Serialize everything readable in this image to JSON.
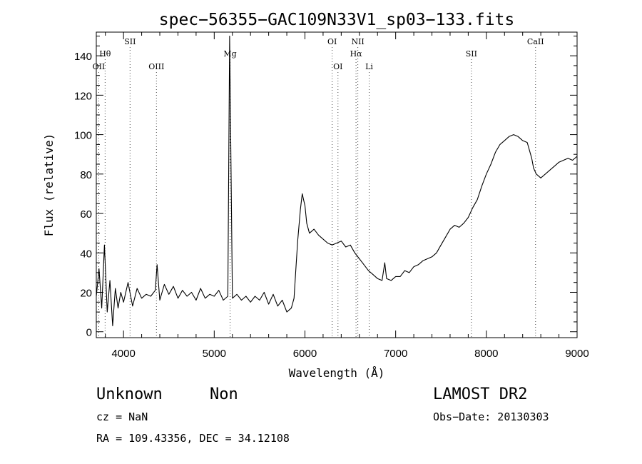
{
  "chart_data": {
    "type": "line",
    "title": "spec−56355−GAC109N33V1_sp03−133.fits",
    "xlabel": "Wavelength (Å)",
    "ylabel": "Flux (relative)",
    "xlim": [
      3700,
      9000
    ],
    "ylim": [
      -3,
      152
    ],
    "x_ticks": [
      4000,
      5000,
      6000,
      7000,
      8000,
      9000
    ],
    "y_ticks": [
      0,
      20,
      40,
      60,
      80,
      100,
      120,
      140
    ],
    "grid": false,
    "series": [
      {
        "color": "#000000",
        "x": [
          3700,
          3730,
          3760,
          3790,
          3820,
          3850,
          3880,
          3910,
          3940,
          3970,
          4000,
          4050,
          4100,
          4150,
          4200,
          4250,
          4300,
          4350,
          4370,
          4400,
          4450,
          4500,
          4550,
          4600,
          4650,
          4700,
          4750,
          4800,
          4850,
          4900,
          4950,
          5000,
          5050,
          5100,
          5150,
          5170,
          5200,
          5250,
          5300,
          5350,
          5400,
          5450,
          5500,
          5550,
          5600,
          5650,
          5700,
          5750,
          5800,
          5850,
          5880,
          5900,
          5920,
          5950,
          5970,
          5990,
          6000,
          6020,
          6050,
          6100,
          6150,
          6200,
          6250,
          6300,
          6350,
          6400,
          6450,
          6500,
          6550,
          6600,
          6650,
          6700,
          6750,
          6800,
          6850,
          6880,
          6900,
          6950,
          7000,
          7050,
          7100,
          7150,
          7200,
          7250,
          7300,
          7350,
          7400,
          7450,
          7500,
          7550,
          7600,
          7650,
          7700,
          7750,
          7800,
          7850,
          7900,
          7950,
          8000,
          8050,
          8100,
          8150,
          8200,
          8250,
          8300,
          8350,
          8400,
          8450,
          8500,
          8520,
          8550,
          8600,
          8650,
          8700,
          8750,
          8800,
          8850,
          8900,
          8950,
          9000
        ],
        "values": [
          18,
          32,
          12,
          44,
          10,
          26,
          3,
          22,
          12,
          20,
          15,
          25,
          13,
          22,
          17,
          19,
          18,
          21,
          34,
          16,
          24,
          19,
          23,
          17,
          21,
          18,
          20,
          16,
          22,
          17,
          19,
          18,
          21,
          16,
          18,
          150,
          17,
          19,
          16,
          18,
          15,
          18,
          16,
          20,
          14,
          19,
          13,
          16,
          10,
          12,
          17,
          32,
          46,
          62,
          70,
          66,
          64,
          55,
          50,
          52,
          49,
          47,
          45,
          44,
          45,
          46,
          43,
          44,
          40,
          37,
          34,
          31,
          29,
          27,
          26,
          35,
          27,
          26,
          28,
          28,
          31,
          30,
          33,
          34,
          36,
          37,
          38,
          40,
          44,
          48,
          52,
          54,
          53,
          55,
          58,
          63,
          67,
          74,
          80,
          85,
          91,
          95,
          97,
          99,
          100,
          99,
          97,
          96,
          88,
          83,
          80,
          78,
          80,
          82,
          84,
          86,
          87,
          88,
          87,
          89
        ]
      }
    ],
    "line_markers": [
      {
        "label": "Hθ",
        "wavelength": 3797,
        "row": 1
      },
      {
        "label": "OII",
        "wavelength": 3727,
        "row": 2
      },
      {
        "label": "SII",
        "wavelength": 4072,
        "row": 0
      },
      {
        "label": "OIII",
        "wavelength": 4363,
        "row": 2
      },
      {
        "label": "Mg",
        "wavelength": 5175,
        "row": 1
      },
      {
        "label": "OI",
        "wavelength": 6300,
        "row": 0
      },
      {
        "label": "OI",
        "wavelength": 6364,
        "row": 2
      },
      {
        "label": "NII",
        "wavelength": 6583,
        "row": 0
      },
      {
        "label": "Hα",
        "wavelength": 6563,
        "row": 1
      },
      {
        "label": "Li",
        "wavelength": 6708,
        "row": 2
      },
      {
        "label": "SII",
        "wavelength": 7835,
        "row": 1
      },
      {
        "label": "CaII",
        "wavelength": 8542,
        "row": 0
      }
    ]
  },
  "info": {
    "class": "Unknown",
    "subclass": "Non",
    "survey": "LAMOST DR2",
    "redshift": "cz = NaN",
    "obs_date": "Obs−Date: 20130303",
    "coords": "RA = 109.43356, DEC =  34.12108"
  }
}
